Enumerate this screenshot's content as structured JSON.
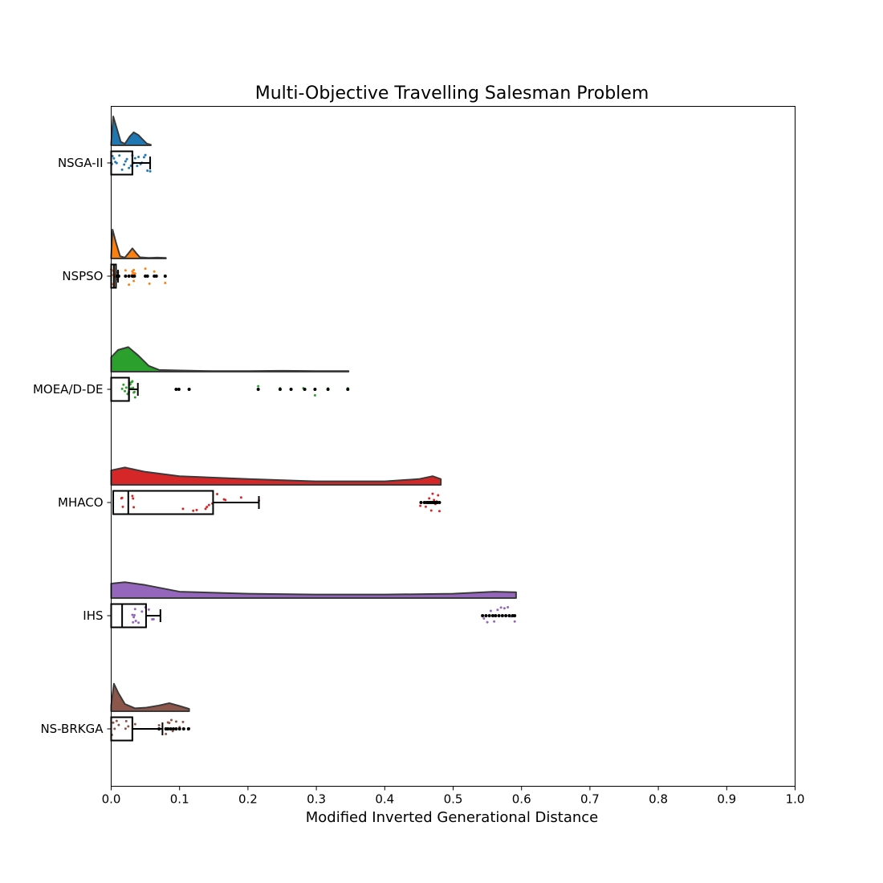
{
  "chart_data": {
    "type": "raincloud",
    "title": "Multi-Objective Travelling Salesman Problem",
    "xlabel": "Modified Inverted Generational Distance",
    "ylabel": "",
    "xlim": [
      0.0,
      1.0
    ],
    "xticks": [
      0.0,
      0.1,
      0.2,
      0.3,
      0.4,
      0.5,
      0.6,
      0.7,
      0.8,
      0.9,
      1.0
    ],
    "xtick_labels": [
      "0.0",
      "0.1",
      "0.2",
      "0.3",
      "0.4",
      "0.5",
      "0.6",
      "0.7",
      "0.8",
      "0.9",
      "1.0"
    ],
    "grid": false,
    "categories": [
      "NSGA-II",
      "NSPSO",
      "MOEA/D-DE",
      "MHACO",
      "IHS",
      "NS-BRKGA"
    ],
    "series": [
      {
        "color": "#1f77b4",
        "box": {
          "q1": 0.0,
          "median": 0.031,
          "q3": 0.031,
          "whisker_low": 0.0,
          "whisker_high": 0.057
        },
        "density": [
          [
            0.0,
            0.05
          ],
          [
            0.003,
            1.0
          ],
          [
            0.008,
            0.6
          ],
          [
            0.014,
            0.12
          ],
          [
            0.02,
            0.05
          ],
          [
            0.027,
            0.3
          ],
          [
            0.033,
            0.45
          ],
          [
            0.04,
            0.35
          ],
          [
            0.047,
            0.18
          ],
          [
            0.052,
            0.06
          ],
          [
            0.058,
            0.02
          ]
        ],
        "points": [
          0.0,
          0.001,
          0.002,
          0.004,
          0.006,
          0.008,
          0.012,
          0.016,
          0.019,
          0.021,
          0.023,
          0.026,
          0.029,
          0.031,
          0.033,
          0.035,
          0.038,
          0.04,
          0.043,
          0.045,
          0.048,
          0.05,
          0.053,
          0.057
        ],
        "outliers": []
      },
      {
        "color": "#ff7f0e",
        "box": {
          "q1": 0.0,
          "median": 0.004,
          "q3": 0.007,
          "whisker_low": 0.0,
          "whisker_high": 0.01
        },
        "density": [
          [
            0.0,
            0.08
          ],
          [
            0.002,
            1.0
          ],
          [
            0.007,
            0.55
          ],
          [
            0.013,
            0.08
          ],
          [
            0.02,
            0.03
          ],
          [
            0.026,
            0.2
          ],
          [
            0.031,
            0.35
          ],
          [
            0.036,
            0.2
          ],
          [
            0.042,
            0.04
          ],
          [
            0.055,
            0.02
          ],
          [
            0.068,
            0.03
          ],
          [
            0.08,
            0.02
          ]
        ],
        "points": [
          0.0,
          0.001,
          0.002,
          0.003,
          0.004,
          0.006,
          0.008,
          0.01,
          0.021,
          0.026,
          0.03,
          0.031,
          0.032,
          0.032,
          0.033,
          0.033,
          0.034,
          0.035,
          0.05,
          0.056,
          0.063,
          0.079
        ],
        "outliers": [
          0.008,
          0.011,
          0.021,
          0.026,
          0.031,
          0.034,
          0.05,
          0.053,
          0.063,
          0.066,
          0.079
        ]
      },
      {
        "color": "#2ca02c",
        "box": {
          "q1": 0.0,
          "median": 0.026,
          "q3": 0.026,
          "whisker_low": 0.0,
          "whisker_high": 0.039
        },
        "density": [
          [
            0.0,
            0.5
          ],
          [
            0.01,
            0.75
          ],
          [
            0.025,
            0.85
          ],
          [
            0.04,
            0.55
          ],
          [
            0.055,
            0.2
          ],
          [
            0.07,
            0.06
          ],
          [
            0.1,
            0.04
          ],
          [
            0.15,
            0.02
          ],
          [
            0.2,
            0.02
          ],
          [
            0.25,
            0.03
          ],
          [
            0.3,
            0.02
          ],
          [
            0.347,
            0.02
          ]
        ],
        "points": [
          0.016,
          0.018,
          0.02,
          0.022,
          0.024,
          0.026,
          0.027,
          0.028,
          0.029,
          0.03,
          0.031,
          0.032,
          0.033,
          0.034,
          0.035,
          0.215,
          0.247,
          0.263,
          0.281,
          0.298,
          0.317,
          0.346
        ],
        "outliers": [
          0.095,
          0.099,
          0.114,
          0.215,
          0.247,
          0.263,
          0.283,
          0.298,
          0.317,
          0.346
        ]
      },
      {
        "color": "#d62728",
        "box": {
          "q1": 0.003,
          "median": 0.025,
          "q3": 0.149,
          "whisker_low": 0.003,
          "whisker_high": 0.216
        },
        "density": [
          [
            0.0,
            0.5
          ],
          [
            0.02,
            0.6
          ],
          [
            0.05,
            0.45
          ],
          [
            0.1,
            0.3
          ],
          [
            0.15,
            0.25
          ],
          [
            0.2,
            0.2
          ],
          [
            0.3,
            0.12
          ],
          [
            0.4,
            0.12
          ],
          [
            0.45,
            0.2
          ],
          [
            0.47,
            0.3
          ],
          [
            0.482,
            0.2
          ]
        ],
        "points": [
          0.015,
          0.016,
          0.017,
          0.031,
          0.032,
          0.033,
          0.105,
          0.12,
          0.125,
          0.138,
          0.14,
          0.143,
          0.148,
          0.155,
          0.165,
          0.167,
          0.19,
          0.216,
          0.452,
          0.46,
          0.465,
          0.468,
          0.47,
          0.472,
          0.474,
          0.476,
          0.478,
          0.48
        ],
        "outliers": [
          0.453,
          0.458,
          0.461,
          0.463,
          0.465,
          0.467,
          0.469,
          0.471,
          0.473,
          0.475,
          0.477,
          0.48
        ]
      },
      {
        "color": "#9467bd",
        "box": {
          "q1": 0.0,
          "median": 0.016,
          "q3": 0.051,
          "whisker_low": 0.0,
          "whisker_high": 0.072
        },
        "density": [
          [
            0.0,
            0.5
          ],
          [
            0.02,
            0.55
          ],
          [
            0.05,
            0.45
          ],
          [
            0.1,
            0.22
          ],
          [
            0.2,
            0.15
          ],
          [
            0.3,
            0.12
          ],
          [
            0.4,
            0.12
          ],
          [
            0.5,
            0.15
          ],
          [
            0.56,
            0.22
          ],
          [
            0.592,
            0.2
          ]
        ],
        "points": [
          0.031,
          0.032,
          0.033,
          0.034,
          0.035,
          0.036,
          0.04,
          0.045,
          0.05,
          0.055,
          0.06,
          0.062,
          0.545,
          0.55,
          0.555,
          0.56,
          0.565,
          0.57,
          0.575,
          0.58,
          0.585,
          0.59
        ],
        "outliers": [
          0.543,
          0.548,
          0.553,
          0.558,
          0.562,
          0.567,
          0.572,
          0.577,
          0.582,
          0.587,
          0.59
        ]
      },
      {
        "color": "#8c564b",
        "box": {
          "q1": 0.0,
          "median": 0.031,
          "q3": 0.031,
          "whisker_low": 0.0,
          "whisker_high": 0.075
        },
        "density": [
          [
            0.0,
            0.2
          ],
          [
            0.004,
            0.95
          ],
          [
            0.01,
            0.65
          ],
          [
            0.02,
            0.25
          ],
          [
            0.035,
            0.1
          ],
          [
            0.05,
            0.12
          ],
          [
            0.07,
            0.2
          ],
          [
            0.085,
            0.28
          ],
          [
            0.1,
            0.18
          ],
          [
            0.114,
            0.08
          ]
        ],
        "points": [
          0.001,
          0.003,
          0.005,
          0.008,
          0.011,
          0.021,
          0.022,
          0.025,
          0.035,
          0.07,
          0.08,
          0.083,
          0.085,
          0.088,
          0.09,
          0.095,
          0.1,
          0.105,
          0.114
        ],
        "outliers": [
          0.07,
          0.08,
          0.083,
          0.087,
          0.091,
          0.095,
          0.1,
          0.106,
          0.113
        ]
      }
    ]
  }
}
